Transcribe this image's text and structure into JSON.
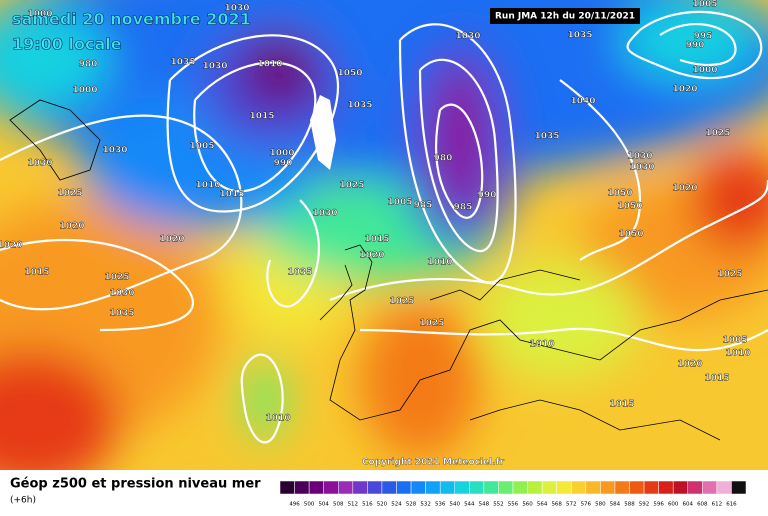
{
  "header": {
    "date": "samedi 20 novembre 2021",
    "time": "19:00 locale",
    "run": "Run JMA 12h du 20/11/2021"
  },
  "copyright": "Copyright 2021 Meteociel.fr",
  "footer": {
    "title": "Géop z500 et pression niveau mer",
    "lead": "(+6h)"
  },
  "isobar_labels": [
    "1000",
    "980",
    "1000",
    "1030",
    "1030",
    "1025",
    "1020",
    "1020",
    "1015",
    "1025",
    "1030",
    "1035",
    "1035",
    "1030",
    "1010",
    "1030",
    "1015",
    "1005",
    "1000",
    "990",
    "1010",
    "1015",
    "1050",
    "1035",
    "1030",
    "1025",
    "1035",
    "1020",
    "1015",
    "1020",
    "1025",
    "1025",
    "1010",
    "1030",
    "980",
    "990",
    "985",
    "1005",
    "985",
    "1035",
    "1040",
    "1035",
    "1030",
    "1030",
    "1050",
    "1050",
    "1050",
    "1020",
    "1025",
    "1020",
    "1025",
    "1010",
    "1015",
    "1020",
    "1015",
    "1005",
    "1010",
    "1010",
    "1005",
    "990",
    "995",
    "1000"
  ],
  "colorbar": {
    "labels": [
      496,
      500,
      504,
      508,
      512,
      516,
      520,
      524,
      528,
      532,
      536,
      540,
      544,
      548,
      552,
      556,
      560,
      564,
      568,
      572,
      576,
      580,
      584,
      588,
      592,
      596,
      600,
      604,
      608,
      612,
      616
    ],
    "colors": [
      "#2a0030",
      "#4a0058",
      "#6a0078",
      "#8a109a",
      "#9a2cb8",
      "#7038c8",
      "#4a48d8",
      "#2a5ae6",
      "#1a6ef2",
      "#1488f8",
      "#10a2f8",
      "#10bcf0",
      "#18d2e0",
      "#28e0c0",
      "#40e898",
      "#68ee70",
      "#90f050",
      "#b8f040",
      "#dcf040",
      "#f4e838",
      "#f8d030",
      "#f8b828",
      "#f89a20",
      "#f47a18",
      "#ee5a14",
      "#e63a14",
      "#d82018",
      "#c01028",
      "#d03070",
      "#e070b0",
      "#f0b0d8",
      "#101010"
    ]
  }
}
